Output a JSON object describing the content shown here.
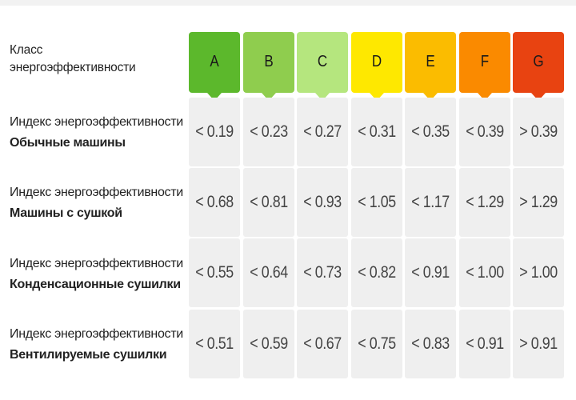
{
  "header": {
    "class_label_line1": "Класс",
    "class_label_line2": "энергоэффективности"
  },
  "classes": [
    {
      "letter": "A",
      "color": "#5cb82c"
    },
    {
      "letter": "B",
      "color": "#8fcd4e"
    },
    {
      "letter": "C",
      "color": "#b5e67e"
    },
    {
      "letter": "D",
      "color": "#fee800"
    },
    {
      "letter": "E",
      "color": "#fbbc00"
    },
    {
      "letter": "F",
      "color": "#fa8a00"
    },
    {
      "letter": "G",
      "color": "#e84311"
    }
  ],
  "rows": [
    {
      "label_line1": "Индекс энергоэффективности",
      "label_line2": "Обычные машины",
      "values": [
        "< 0.19",
        "< 0.23",
        "< 0.27",
        "< 0.31",
        "< 0.35",
        "< 0.39",
        "> 0.39"
      ]
    },
    {
      "label_line1": "Индекс энергоэффективности",
      "label_line2": "Машины с сушкой",
      "values": [
        "< 0.68",
        "< 0.81",
        "< 0.93",
        "< 1.05",
        "< 1.17",
        "< 1.29",
        "> 1.29"
      ]
    },
    {
      "label_line1": "Индекс энергоэффективности",
      "label_line2": "Конденсационные сушилки",
      "values": [
        "< 0.55",
        "< 0.64",
        "< 0.73",
        "< 0.82",
        "< 0.91",
        "< 1.00",
        "> 1.00"
      ]
    },
    {
      "label_line1": "Индекс энергоэффективности",
      "label_line2": "Вентилируемые сушилки",
      "values": [
        "< 0.51",
        "< 0.59",
        "< 0.67",
        "< 0.75",
        "< 0.83",
        "< 0.91",
        "> 0.91"
      ]
    }
  ]
}
